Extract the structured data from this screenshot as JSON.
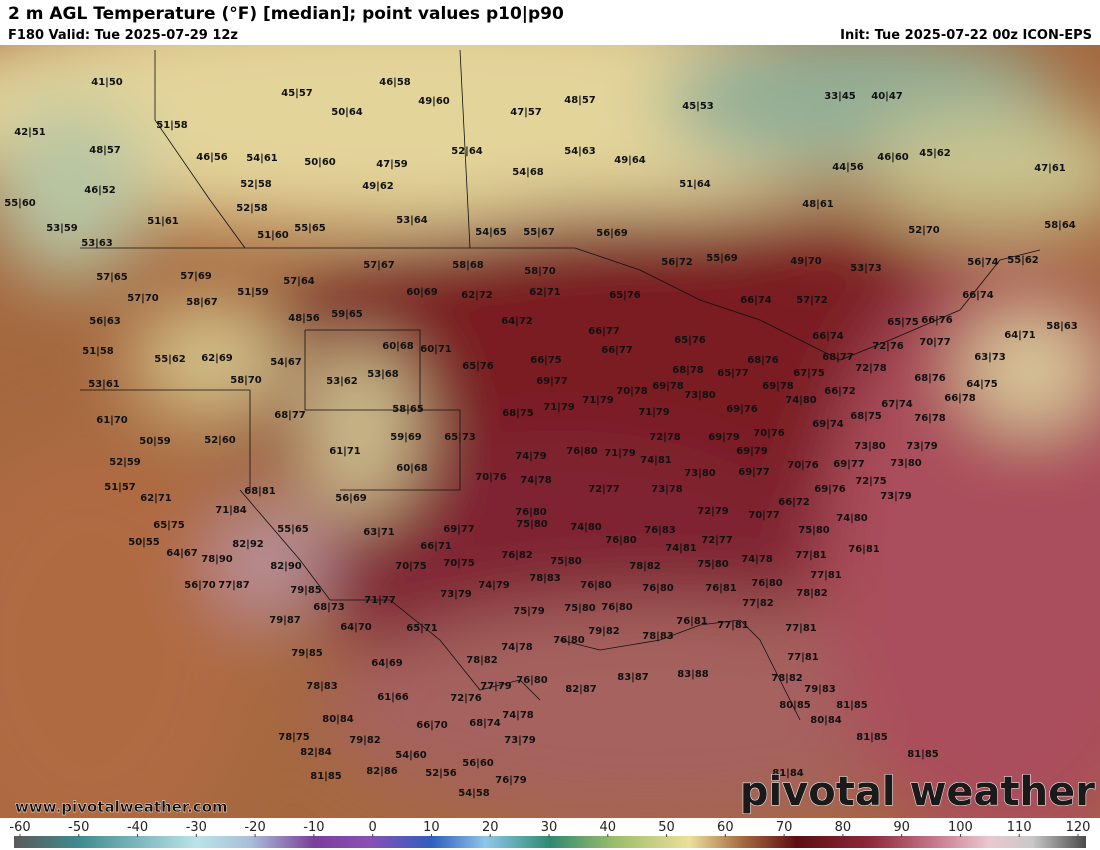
{
  "header": {
    "title": "2 m AGL Temperature (°F) [median]; point values p10|p90",
    "valid": "F180 Valid: Tue 2025-07-29 12z",
    "init": "Init: Tue 2025-07-22 00z ICON-EPS"
  },
  "points": [
    "41|50",
    "42|51",
    "48|57",
    "46|52",
    "55|60",
    "53|59",
    "51|58",
    "46|56",
    "54|61",
    "52|58",
    "52|58",
    "51|61",
    "51|60",
    "55|65",
    "45|57",
    "46|58",
    "50|64",
    "49|60",
    "47|57",
    "48|57",
    "45|53",
    "33|45",
    "40|47",
    "50|60",
    "47|59",
    "49|62",
    "52|64",
    "54|68",
    "54|63",
    "49|64",
    "51|64",
    "46|60",
    "45|62",
    "44|56",
    "47|61",
    "48|61",
    "53|64",
    "54|65",
    "55|67",
    "56|69",
    "52|70",
    "58|64",
    "53|63",
    "57|65",
    "57|69",
    "57|64",
    "57|67",
    "58|68",
    "58|70",
    "56|72",
    "55|69",
    "49|70",
    "53|73",
    "56|74",
    "55|62",
    "51|59",
    "60|69",
    "62|72",
    "62|71",
    "65|76",
    "57|70",
    "58|67",
    "48|56",
    "59|65",
    "64|72",
    "66|74",
    "57|72",
    "66|74",
    "56|63",
    "51|58",
    "55|62",
    "62|69",
    "54|67",
    "60|68",
    "60|71",
    "66|77",
    "66|77",
    "65|76",
    "66|75",
    "65|75",
    "66|76",
    "64|71",
    "58|63",
    "66|74",
    "53|61",
    "58|70",
    "53|62",
    "53|68",
    "65|76",
    "68|76",
    "65|77",
    "68|77",
    "72|76",
    "70|77",
    "63|73",
    "68|78",
    "69|77",
    "70|78",
    "69|78",
    "73|80",
    "69|78",
    "67|75",
    "66|72",
    "72|78",
    "68|76",
    "64|75",
    "66|78",
    "61|70",
    "68|77",
    "58|65",
    "68|75",
    "71|79",
    "71|79",
    "74|80",
    "69|76",
    "67|74",
    "68|75",
    "69|74",
    "76|78",
    "50|59",
    "52|60",
    "59|69",
    "65|73",
    "71|79",
    "72|78",
    "69|79",
    "70|76",
    "73|80",
    "73|79",
    "52|59",
    "61|71",
    "74|79",
    "76|80",
    "71|79",
    "74|81",
    "69|79",
    "73|80",
    "60|68",
    "70|76",
    "74|78",
    "73|80",
    "69|77",
    "70|76",
    "69|77",
    "51|57",
    "62|71",
    "68|81",
    "56|69",
    "72|77",
    "73|78",
    "69|76",
    "72|75",
    "73|79",
    "76|80",
    "72|79",
    "70|77",
    "66|72",
    "74|80",
    "71|84",
    "65|75",
    "55|65",
    "69|77",
    "75|80",
    "74|80",
    "76|83",
    "75|80",
    "50|55",
    "82|92",
    "63|71",
    "66|71",
    "76|80",
    "72|77",
    "76|81",
    "64|67",
    "78|90",
    "82|90",
    "76|82",
    "75|80",
    "74|81",
    "75|80",
    "74|78",
    "77|81",
    "70|75",
    "70|75",
    "78|82",
    "76|81",
    "76|80",
    "77|81",
    "56|70",
    "77|87",
    "79|85",
    "78|83",
    "74|79",
    "76|80",
    "76|80",
    "78|82",
    "73|79",
    "71|77",
    "68|73",
    "75|79",
    "75|80",
    "76|80",
    "77|82",
    "79|87",
    "64|70",
    "65|71",
    "77|81",
    "77|81",
    "76|81",
    "79|82",
    "76|80",
    "78|83",
    "74|78",
    "79|85",
    "78|82",
    "64|69",
    "77|81",
    "82|87",
    "83|87",
    "83|88",
    "76|80",
    "77|79",
    "78|82",
    "79|83",
    "78|83",
    "61|66",
    "72|76",
    "80|85",
    "81|85",
    "80|84",
    "74|78",
    "66|70",
    "68|74",
    "80|84",
    "78|75",
    "81|85",
    "79|82",
    "73|79",
    "82|84",
    "54|60",
    "56|60",
    "81|85",
    "82|86",
    "52|56",
    "76|79",
    "81|85",
    "81|84",
    "54|58"
  ],
  "colorbar": {
    "ticks": [
      -60,
      -50,
      -40,
      -30,
      -20,
      -10,
      0,
      10,
      20,
      30,
      40,
      50,
      60,
      70,
      80,
      90,
      100,
      110,
      120
    ]
  },
  "watermark": {
    "url": "www.pivotalweather.com",
    "logo": "pivotal weather"
  }
}
